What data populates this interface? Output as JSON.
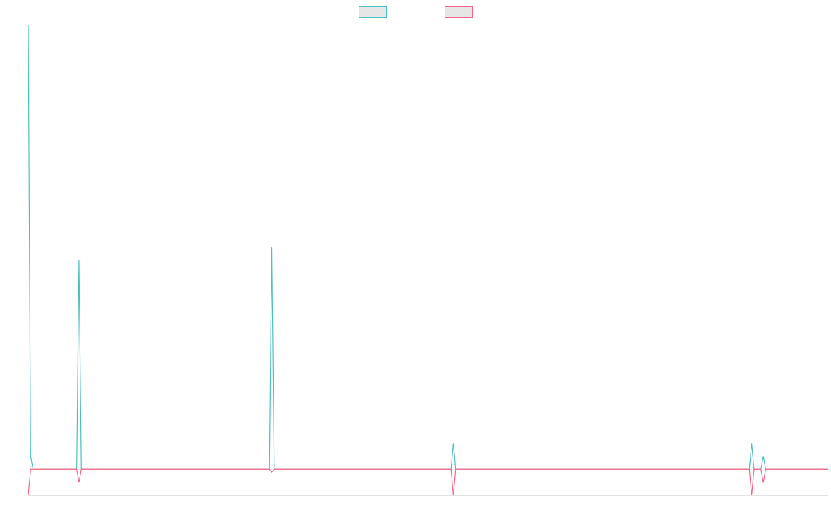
{
  "chart_data": {
    "type": "line",
    "title": "",
    "xlabel": "",
    "ylabel": "",
    "grid": false,
    "legend": "top-center",
    "colors": {
      "series_a": "#4bc0c0",
      "series_b": "#ff6384",
      "legend_fill": "#e6e6e6",
      "axis": "#e3e3e3"
    },
    "x": [
      0,
      1,
      2,
      3,
      4,
      5,
      6,
      7,
      8,
      9,
      10,
      11,
      12,
      13,
      14,
      15,
      16,
      17,
      18,
      19,
      20,
      21,
      22,
      23,
      24,
      25,
      26,
      27,
      28,
      29,
      30,
      31,
      32,
      33,
      34,
      35,
      36,
      37,
      38,
      39,
      40,
      41,
      42,
      43,
      44,
      45,
      46,
      47,
      48,
      49,
      50,
      51,
      52,
      53,
      54,
      55,
      56,
      57,
      58,
      59,
      60,
      61,
      62,
      63,
      64,
      65,
      66,
      67,
      68,
      69,
      70,
      71,
      72,
      73,
      74,
      75,
      76,
      77,
      78,
      79,
      80,
      81,
      82,
      83,
      84,
      85,
      86,
      87,
      88,
      89,
      90,
      91,
      92,
      93,
      94,
      95,
      96,
      97,
      98,
      99,
      100,
      101,
      102,
      103,
      104,
      105,
      106,
      107,
      108,
      109,
      110,
      111,
      112,
      113,
      114,
      115,
      116,
      117,
      118,
      119,
      120,
      121,
      122,
      123,
      124,
      125,
      126,
      127,
      128,
      129,
      130,
      131,
      132,
      133,
      134,
      135,
      136,
      137,
      138,
      139,
      140,
      141,
      142,
      143,
      144,
      145,
      146,
      147,
      148,
      149,
      150,
      151,
      152,
      153,
      154,
      155,
      156,
      157,
      158,
      159,
      160,
      161,
      162,
      163,
      164,
      165,
      166,
      167,
      168,
      169,
      170,
      171,
      172,
      173,
      174,
      175,
      176,
      177,
      178,
      179,
      180,
      181,
      182,
      183,
      184,
      185,
      186,
      187,
      188,
      189,
      190,
      191,
      192,
      193,
      194,
      195,
      196,
      197,
      198,
      199,
      200,
      201,
      202,
      203,
      204,
      205,
      206,
      207,
      208,
      209,
      210,
      211,
      212,
      213,
      214,
      215,
      216,
      217,
      218,
      219,
      220,
      221,
      222,
      223,
      224,
      225,
      226,
      227,
      228,
      229,
      230,
      231,
      232,
      233,
      234,
      235,
      236,
      237,
      238,
      239,
      240,
      241,
      242,
      243,
      244,
      245,
      246,
      247,
      248,
      249,
      250,
      251,
      252,
      253,
      254,
      255,
      256,
      257,
      258,
      259,
      260,
      261,
      262,
      263,
      264,
      265,
      266,
      267,
      268,
      269,
      270,
      271,
      272,
      273,
      274,
      275,
      276,
      277,
      278,
      279,
      280,
      281,
      282,
      283,
      284,
      285,
      286,
      287,
      288,
      289,
      290,
      291,
      292,
      293,
      294,
      295,
      296,
      297,
      298,
      299,
      300,
      301,
      302,
      303,
      304,
      305,
      306,
      307,
      308,
      309,
      310,
      311,
      312,
      313,
      314,
      315,
      316,
      317,
      318,
      319,
      320,
      321,
      322,
      323,
      324,
      325,
      326,
      327,
      328,
      329,
      330,
      331,
      332,
      333,
      334,
      335,
      336,
      337,
      338,
      339,
      340,
      341,
      342,
      343,
      344,
      345,
      346,
      347,
      348
    ],
    "xlim": [
      0,
      348
    ],
    "ylim": [
      -2,
      34
    ],
    "series": [
      {
        "key": "series_a",
        "values": [
          34,
          1,
          0,
          0,
          0,
          0,
          0,
          0,
          0,
          0,
          0,
          0,
          0,
          0,
          0,
          0,
          0,
          0,
          0,
          0,
          0,
          0,
          16,
          0,
          0,
          0,
          0,
          0,
          0,
          0,
          0,
          0,
          0,
          0,
          0,
          0,
          0,
          0,
          0,
          0,
          0,
          0,
          0,
          0,
          0,
          0,
          0,
          0,
          0,
          0,
          0,
          0,
          0,
          0,
          0,
          0,
          0,
          0,
          0,
          0,
          0,
          0,
          0,
          0,
          0,
          0,
          0,
          0,
          0,
          0,
          0,
          0,
          0,
          0,
          0,
          0,
          0,
          0,
          0,
          0,
          0,
          0,
          0,
          0,
          0,
          0,
          0,
          0,
          0,
          0,
          0,
          0,
          0,
          0,
          0,
          0,
          0,
          0,
          0,
          0,
          0,
          0,
          0,
          0,
          0,
          0,
          17,
          0,
          0,
          0,
          0,
          0,
          0,
          0,
          0,
          0,
          0,
          0,
          0,
          0,
          0,
          0,
          0,
          0,
          0,
          0,
          0,
          0,
          0,
          0,
          0,
          0,
          0,
          0,
          0,
          0,
          0,
          0,
          0,
          0,
          0,
          0,
          0,
          0,
          0,
          0,
          0,
          0,
          0,
          0,
          0,
          0,
          0,
          0,
          0,
          0,
          0,
          0,
          0,
          0,
          0,
          0,
          0,
          0,
          0,
          0,
          0,
          0,
          0,
          0,
          0,
          0,
          0,
          0,
          0,
          0,
          0,
          0,
          0,
          0,
          0,
          0,
          0,
          0,
          0,
          2,
          0,
          0,
          0,
          0,
          0,
          0,
          0,
          0,
          0,
          0,
          0,
          0,
          0,
          0,
          0,
          0,
          0,
          0,
          0,
          0,
          0,
          0,
          0,
          0,
          0,
          0,
          0,
          0,
          0,
          0,
          0,
          0,
          0,
          0,
          0,
          0,
          0,
          0,
          0,
          0,
          0,
          0,
          0,
          0,
          0,
          0,
          0,
          0,
          0,
          0,
          0,
          0,
          0,
          0,
          0,
          0,
          0,
          0,
          0,
          0,
          0,
          0,
          0,
          0,
          0,
          0,
          0,
          0,
          0,
          0,
          0,
          0,
          0,
          0,
          0,
          0,
          0,
          0,
          0,
          0,
          0,
          0,
          0,
          0,
          0,
          0,
          0,
          0,
          0,
          0,
          0,
          0,
          0,
          0,
          0,
          0,
          0,
          0,
          0,
          0,
          0,
          0,
          0,
          0,
          0,
          0,
          0,
          0,
          0,
          0,
          0,
          0,
          0,
          0,
          0,
          0,
          0,
          0,
          0,
          0,
          0,
          0,
          0,
          0,
          0,
          0,
          0,
          0,
          0,
          2,
          0,
          0,
          0,
          0,
          1,
          0,
          0,
          0,
          0,
          0,
          0,
          0,
          0,
          0,
          0,
          0,
          0,
          0,
          0,
          0,
          0,
          0,
          0,
          0,
          0,
          0,
          0,
          0,
          0,
          0,
          0,
          0,
          0
        ]
      },
      {
        "key": "series_b",
        "values": [
          -2,
          0,
          0,
          0,
          0,
          0,
          0,
          0,
          0,
          0,
          0,
          0,
          0,
          0,
          0,
          0,
          0,
          0,
          0,
          0,
          0,
          0,
          -1,
          0,
          0,
          0,
          0,
          0,
          0,
          0,
          0,
          0,
          0,
          0,
          0,
          0,
          0,
          0,
          0,
          0,
          0,
          0,
          0,
          0,
          0,
          0,
          0,
          0,
          0,
          0,
          0,
          0,
          0,
          0,
          0,
          0,
          0,
          0,
          0,
          0,
          0,
          0,
          0,
          0,
          0,
          0,
          0,
          0,
          0,
          0,
          0,
          0,
          0,
          0,
          0,
          0,
          0,
          0,
          0,
          0,
          0,
          0,
          0,
          0,
          0,
          0,
          0,
          0,
          0,
          0,
          0,
          0,
          0,
          0,
          0,
          0,
          0,
          0,
          0,
          0,
          0,
          0,
          0,
          0,
          0,
          0,
          -0.2,
          0,
          0,
          0,
          0,
          0,
          0,
          0,
          0,
          0,
          0,
          0,
          0,
          0,
          0,
          0,
          0,
          0,
          0,
          0,
          0,
          0,
          0,
          0,
          0,
          0,
          0,
          0,
          0,
          0,
          0,
          0,
          0,
          0,
          0,
          0,
          0,
          0,
          0,
          0,
          0,
          0,
          0,
          0,
          0,
          0,
          0,
          0,
          0,
          0,
          0,
          0,
          0,
          0,
          0,
          0,
          0,
          0,
          0,
          0,
          0,
          0,
          0,
          0,
          0,
          0,
          0,
          0,
          0,
          0,
          0,
          0,
          0,
          0,
          0,
          0,
          0,
          0,
          0,
          -2,
          0,
          0,
          0,
          0,
          0,
          0,
          0,
          0,
          0,
          0,
          0,
          0,
          0,
          0,
          0,
          0,
          0,
          0,
          0,
          0,
          0,
          0,
          0,
          0,
          0,
          0,
          0,
          0,
          0,
          0,
          0,
          0,
          0,
          0,
          0,
          0,
          0,
          0,
          0,
          0,
          0,
          0,
          0,
          0,
          0,
          0,
          0,
          0,
          0,
          0,
          0,
          0,
          0,
          0,
          0,
          0,
          0,
          0,
          0,
          0,
          0,
          0,
          0,
          0,
          0,
          0,
          0,
          0,
          0,
          0,
          0,
          0,
          0,
          0,
          0,
          0,
          0,
          0,
          0,
          0,
          0,
          0,
          0,
          0,
          0,
          0,
          0,
          0,
          0,
          0,
          0,
          0,
          0,
          0,
          0,
          0,
          0,
          0,
          0,
          0,
          0,
          0,
          0,
          0,
          0,
          0,
          0,
          0,
          0,
          0,
          0,
          0,
          0,
          0,
          0,
          0,
          0,
          0,
          0,
          0,
          0,
          0,
          0,
          0,
          0,
          0,
          0,
          0,
          0,
          -2,
          0,
          0,
          0,
          0,
          -1,
          0,
          0,
          0,
          0,
          0,
          0,
          0,
          0,
          0,
          0,
          0,
          0,
          0,
          0,
          0,
          0,
          0,
          0,
          0,
          0,
          0,
          0,
          0,
          0,
          0,
          0,
          0,
          0
        ]
      }
    ]
  }
}
